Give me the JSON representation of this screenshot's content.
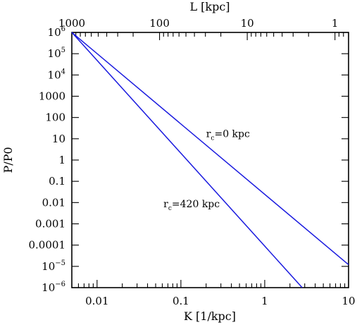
{
  "chart_data": {
    "type": "line",
    "xlabel": "K [1/kpc]",
    "x2label": "L [kpc]",
    "ylabel": "P/P0",
    "x_scale": "log",
    "y_scale": "log",
    "xlim": [
      0.005,
      10
    ],
    "ylim": [
      1e-06,
      1000000
    ],
    "x2lim": [
      1000,
      0.7
    ],
    "x_ticks": [
      {
        "value": 0.01,
        "label": "0.01"
      },
      {
        "value": 0.1,
        "label": "0.1"
      },
      {
        "value": 1,
        "label": "1"
      },
      {
        "value": 10,
        "label": "10"
      }
    ],
    "x2_ticks": [
      {
        "value": 1000,
        "label": "1000"
      },
      {
        "value": 100,
        "label": "100"
      },
      {
        "value": 10,
        "label": "10"
      },
      {
        "value": 1,
        "label": "1"
      }
    ],
    "y_ticks": [
      {
        "value": 1000000,
        "base": "10",
        "exp": "6",
        "label": ""
      },
      {
        "value": 100000,
        "base": "10",
        "exp": "5",
        "label": ""
      },
      {
        "value": 10000,
        "base": "10",
        "exp": "4",
        "label": ""
      },
      {
        "value": 1000,
        "label": "1000"
      },
      {
        "value": 100,
        "label": "100"
      },
      {
        "value": 10,
        "label": "10"
      },
      {
        "value": 1,
        "label": "1"
      },
      {
        "value": 0.1,
        "label": "0.1"
      },
      {
        "value": 0.01,
        "label": "0.01"
      },
      {
        "value": 0.001,
        "label": "0.001"
      },
      {
        "value": 0.0001,
        "label": "0.0001"
      },
      {
        "value": 1e-05,
        "base": "10",
        "exp": "−5",
        "label": ""
      },
      {
        "value": 1e-06,
        "base": "10",
        "exp": "−6",
        "label": ""
      }
    ],
    "line_color": "#1a1adf",
    "series": [
      {
        "name": "",
        "label_main": "r",
        "label_sub": "c",
        "label_rest": "=0 kpc",
        "label_anchor": {
          "x": 0.2,
          "y": 12
        },
        "x": [
          0.005,
          10
        ],
        "y": [
          1000000,
          1.2e-05
        ]
      },
      {
        "name": "",
        "label_main": "r",
        "label_sub": "c",
        "label_rest": "=420 kpc",
        "label_anchor": {
          "x": 0.062,
          "y": 0.006
        },
        "x": [
          0.005,
          2.8
        ],
        "y": [
          1000000,
          1e-06
        ]
      }
    ]
  }
}
